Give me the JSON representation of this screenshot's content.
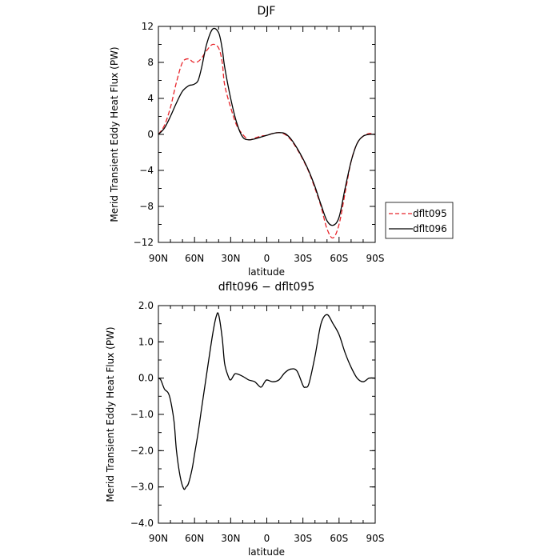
{
  "chart_data": [
    {
      "type": "line",
      "title": "DJF",
      "xlabel": "latitude",
      "ylabel": "Merid Transient Eddy Heat Flux (PW)",
      "xticks": [
        "90N",
        "60N",
        "30N",
        "0",
        "30S",
        "60S",
        "90S"
      ],
      "xlim": [
        -90,
        90
      ],
      "ylim": [
        -12,
        12
      ],
      "yticks": [
        "12",
        "8",
        "4",
        "0",
        "−4",
        "−8",
        "−12"
      ],
      "yticks_values": [
        12,
        8,
        4,
        0,
        -4,
        -8,
        -12
      ],
      "grid": false,
      "legend": {
        "placement": "right",
        "entries": [
          "dflt095",
          "dflt096"
        ]
      },
      "series": [
        {
          "name": "dflt095",
          "color": "#e8242a",
          "style": "dashed",
          "x": [
            -90,
            -85,
            -80,
            -75,
            -70,
            -65,
            -62,
            -60,
            -57,
            -54,
            -50,
            -45,
            -40,
            -37,
            -35,
            -30,
            -25,
            -20,
            -15,
            -10,
            -5,
            0,
            5,
            10,
            15,
            20,
            25,
            30,
            35,
            40,
            45,
            50,
            55,
            60,
            65,
            70,
            75,
            80,
            85,
            90
          ],
          "y": [
            0,
            1.0,
            3.0,
            5.8,
            8.0,
            8.4,
            8.1,
            8.0,
            8.1,
            8.5,
            9.3,
            10.0,
            9.6,
            8.0,
            5.5,
            3.0,
            1.0,
            0,
            -0.6,
            -0.4,
            -0.2,
            -0.1,
            0.1,
            0.2,
            0,
            -0.6,
            -1.6,
            -2.8,
            -4.2,
            -6.0,
            -8.0,
            -10.5,
            -11.5,
            -10.0,
            -6.5,
            -3.0,
            -1.0,
            -0.2,
            0.1,
            0
          ]
        },
        {
          "name": "dflt096",
          "color": "#000000",
          "style": "solid",
          "x": [
            -90,
            -85,
            -80,
            -75,
            -70,
            -65,
            -62,
            -60,
            -57,
            -54,
            -50,
            -45,
            -40,
            -37,
            -35,
            -30,
            -25,
            -20,
            -15,
            -10,
            -5,
            0,
            5,
            10,
            15,
            20,
            25,
            30,
            35,
            40,
            45,
            50,
            55,
            60,
            65,
            70,
            75,
            80,
            85,
            90
          ],
          "y": [
            0,
            0.7,
            2.0,
            3.5,
            4.8,
            5.4,
            5.5,
            5.6,
            6.0,
            7.5,
            10.0,
            11.7,
            11.3,
            9.5,
            7.5,
            4.0,
            1.3,
            -0.3,
            -0.6,
            -0.5,
            -0.3,
            -0.1,
            0.1,
            0.2,
            0.1,
            -0.5,
            -1.5,
            -2.7,
            -4.1,
            -5.8,
            -7.8,
            -9.6,
            -10.1,
            -9.2,
            -6.0,
            -3.0,
            -1.0,
            -0.2,
            0,
            0
          ]
        }
      ]
    },
    {
      "type": "line",
      "title": "dflt096 − dflt095",
      "xlabel": "latitude",
      "ylabel": "Merid Transient Eddy Heat Flux (PW)",
      "xticks": [
        "90N",
        "60N",
        "30N",
        "0",
        "30S",
        "60S",
        "90S"
      ],
      "xlim": [
        -90,
        90
      ],
      "ylim": [
        -4,
        2
      ],
      "yticks": [
        "2.0",
        "1.0",
        "0.0",
        "−1.0",
        "−2.0",
        "−3.0",
        "−4.0"
      ],
      "yticks_values": [
        2,
        1,
        0,
        -1,
        -2,
        -3,
        -4
      ],
      "grid": false,
      "series": [
        {
          "color": "#000000",
          "style": "solid",
          "x": [
            -90,
            -88,
            -85,
            -82,
            -80,
            -77,
            -75,
            -72,
            -69,
            -67,
            -65,
            -62,
            -60,
            -57,
            -54,
            -50,
            -45,
            -42,
            -40,
            -37,
            -35,
            -32,
            -30,
            -27,
            -25,
            -20,
            -15,
            -10,
            -5,
            -2,
            0,
            5,
            10,
            15,
            20,
            25,
            30,
            32,
            35,
            40,
            45,
            50,
            55,
            60,
            65,
            70,
            75,
            80,
            85,
            90
          ],
          "y": [
            0,
            -0.05,
            -0.3,
            -0.4,
            -0.6,
            -1.2,
            -2.0,
            -2.7,
            -3.05,
            -3.0,
            -2.9,
            -2.5,
            -2.1,
            -1.5,
            -0.8,
            0.1,
            1.2,
            1.7,
            1.75,
            1.1,
            0.4,
            0.05,
            -0.05,
            0.1,
            0.12,
            0.05,
            -0.05,
            -0.1,
            -0.25,
            -0.12,
            -0.05,
            -0.1,
            -0.05,
            0.15,
            0.25,
            0.2,
            -0.2,
            -0.25,
            -0.15,
            0.6,
            1.5,
            1.75,
            1.5,
            1.2,
            0.7,
            0.3,
            0.0,
            -0.1,
            0.0,
            0
          ]
        }
      ]
    }
  ]
}
